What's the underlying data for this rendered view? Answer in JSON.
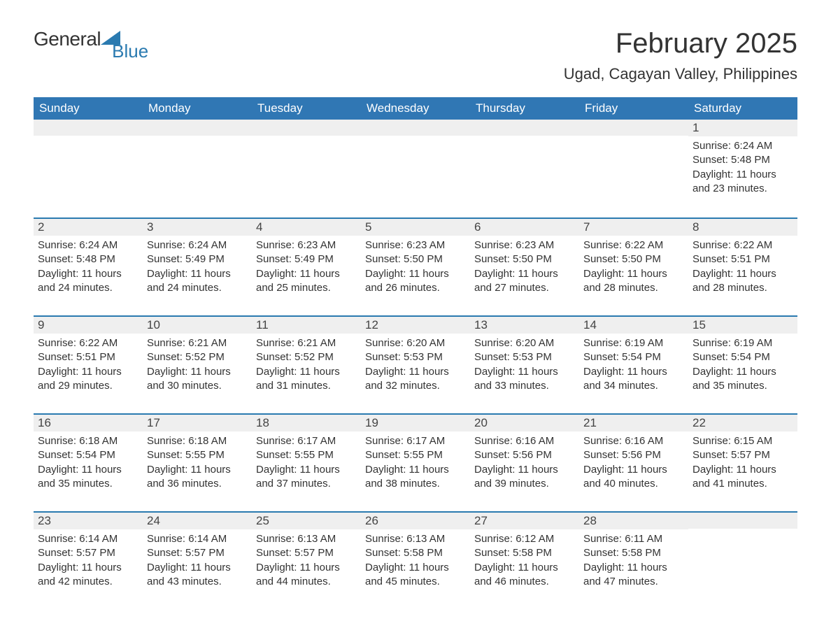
{
  "brand": {
    "word1": "General",
    "word2": "Blue"
  },
  "title": "February 2025",
  "location": "Ugad, Cagayan Valley, Philippines",
  "colors": {
    "header_bg": "#3077b4",
    "header_fg": "#ffffff",
    "row_divider": "#2a7ab0",
    "daynum_bg": "#efefef",
    "text": "#333333",
    "accent": "#2a7ab0",
    "page_bg": "#ffffff"
  },
  "weekdays": [
    "Sunday",
    "Monday",
    "Tuesday",
    "Wednesday",
    "Thursday",
    "Friday",
    "Saturday"
  ],
  "weeks": [
    [
      null,
      null,
      null,
      null,
      null,
      null,
      {
        "day": "1",
        "sunrise": "Sunrise: 6:24 AM",
        "sunset": "Sunset: 5:48 PM",
        "daylight": "Daylight: 11 hours and 23 minutes."
      }
    ],
    [
      {
        "day": "2",
        "sunrise": "Sunrise: 6:24 AM",
        "sunset": "Sunset: 5:48 PM",
        "daylight": "Daylight: 11 hours and 24 minutes."
      },
      {
        "day": "3",
        "sunrise": "Sunrise: 6:24 AM",
        "sunset": "Sunset: 5:49 PM",
        "daylight": "Daylight: 11 hours and 24 minutes."
      },
      {
        "day": "4",
        "sunrise": "Sunrise: 6:23 AM",
        "sunset": "Sunset: 5:49 PM",
        "daylight": "Daylight: 11 hours and 25 minutes."
      },
      {
        "day": "5",
        "sunrise": "Sunrise: 6:23 AM",
        "sunset": "Sunset: 5:50 PM",
        "daylight": "Daylight: 11 hours and 26 minutes."
      },
      {
        "day": "6",
        "sunrise": "Sunrise: 6:23 AM",
        "sunset": "Sunset: 5:50 PM",
        "daylight": "Daylight: 11 hours and 27 minutes."
      },
      {
        "day": "7",
        "sunrise": "Sunrise: 6:22 AM",
        "sunset": "Sunset: 5:50 PM",
        "daylight": "Daylight: 11 hours and 28 minutes."
      },
      {
        "day": "8",
        "sunrise": "Sunrise: 6:22 AM",
        "sunset": "Sunset: 5:51 PM",
        "daylight": "Daylight: 11 hours and 28 minutes."
      }
    ],
    [
      {
        "day": "9",
        "sunrise": "Sunrise: 6:22 AM",
        "sunset": "Sunset: 5:51 PM",
        "daylight": "Daylight: 11 hours and 29 minutes."
      },
      {
        "day": "10",
        "sunrise": "Sunrise: 6:21 AM",
        "sunset": "Sunset: 5:52 PM",
        "daylight": "Daylight: 11 hours and 30 minutes."
      },
      {
        "day": "11",
        "sunrise": "Sunrise: 6:21 AM",
        "sunset": "Sunset: 5:52 PM",
        "daylight": "Daylight: 11 hours and 31 minutes."
      },
      {
        "day": "12",
        "sunrise": "Sunrise: 6:20 AM",
        "sunset": "Sunset: 5:53 PM",
        "daylight": "Daylight: 11 hours and 32 minutes."
      },
      {
        "day": "13",
        "sunrise": "Sunrise: 6:20 AM",
        "sunset": "Sunset: 5:53 PM",
        "daylight": "Daylight: 11 hours and 33 minutes."
      },
      {
        "day": "14",
        "sunrise": "Sunrise: 6:19 AM",
        "sunset": "Sunset: 5:54 PM",
        "daylight": "Daylight: 11 hours and 34 minutes."
      },
      {
        "day": "15",
        "sunrise": "Sunrise: 6:19 AM",
        "sunset": "Sunset: 5:54 PM",
        "daylight": "Daylight: 11 hours and 35 minutes."
      }
    ],
    [
      {
        "day": "16",
        "sunrise": "Sunrise: 6:18 AM",
        "sunset": "Sunset: 5:54 PM",
        "daylight": "Daylight: 11 hours and 35 minutes."
      },
      {
        "day": "17",
        "sunrise": "Sunrise: 6:18 AM",
        "sunset": "Sunset: 5:55 PM",
        "daylight": "Daylight: 11 hours and 36 minutes."
      },
      {
        "day": "18",
        "sunrise": "Sunrise: 6:17 AM",
        "sunset": "Sunset: 5:55 PM",
        "daylight": "Daylight: 11 hours and 37 minutes."
      },
      {
        "day": "19",
        "sunrise": "Sunrise: 6:17 AM",
        "sunset": "Sunset: 5:55 PM",
        "daylight": "Daylight: 11 hours and 38 minutes."
      },
      {
        "day": "20",
        "sunrise": "Sunrise: 6:16 AM",
        "sunset": "Sunset: 5:56 PM",
        "daylight": "Daylight: 11 hours and 39 minutes."
      },
      {
        "day": "21",
        "sunrise": "Sunrise: 6:16 AM",
        "sunset": "Sunset: 5:56 PM",
        "daylight": "Daylight: 11 hours and 40 minutes."
      },
      {
        "day": "22",
        "sunrise": "Sunrise: 6:15 AM",
        "sunset": "Sunset: 5:57 PM",
        "daylight": "Daylight: 11 hours and 41 minutes."
      }
    ],
    [
      {
        "day": "23",
        "sunrise": "Sunrise: 6:14 AM",
        "sunset": "Sunset: 5:57 PM",
        "daylight": "Daylight: 11 hours and 42 minutes."
      },
      {
        "day": "24",
        "sunrise": "Sunrise: 6:14 AM",
        "sunset": "Sunset: 5:57 PM",
        "daylight": "Daylight: 11 hours and 43 minutes."
      },
      {
        "day": "25",
        "sunrise": "Sunrise: 6:13 AM",
        "sunset": "Sunset: 5:57 PM",
        "daylight": "Daylight: 11 hours and 44 minutes."
      },
      {
        "day": "26",
        "sunrise": "Sunrise: 6:13 AM",
        "sunset": "Sunset: 5:58 PM",
        "daylight": "Daylight: 11 hours and 45 minutes."
      },
      {
        "day": "27",
        "sunrise": "Sunrise: 6:12 AM",
        "sunset": "Sunset: 5:58 PM",
        "daylight": "Daylight: 11 hours and 46 minutes."
      },
      {
        "day": "28",
        "sunrise": "Sunrise: 6:11 AM",
        "sunset": "Sunset: 5:58 PM",
        "daylight": "Daylight: 11 hours and 47 minutes."
      },
      null
    ]
  ]
}
